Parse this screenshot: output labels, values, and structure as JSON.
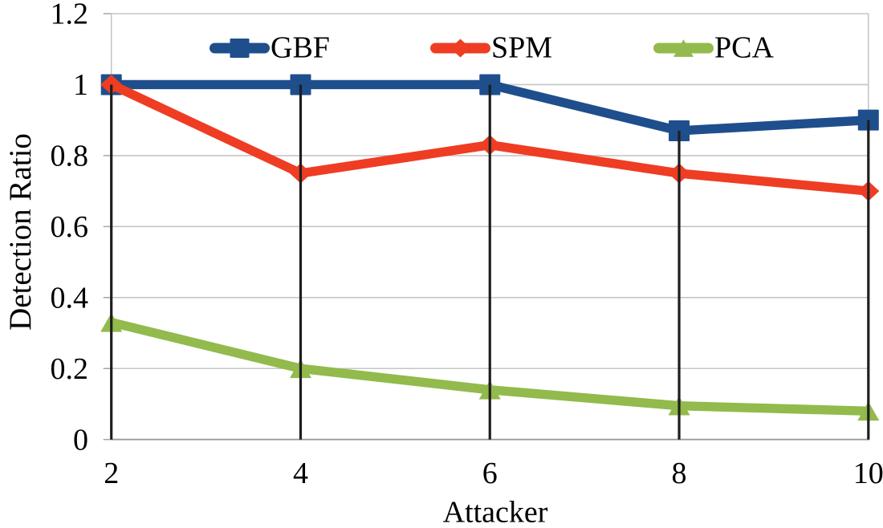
{
  "chart_data": {
    "type": "line",
    "title": "",
    "xlabel": "Attacker",
    "ylabel": "Detection Ratio",
    "x": [
      2,
      4,
      6,
      8,
      10
    ],
    "x_tick_labels": [
      "2",
      "4",
      "6",
      "8",
      "10"
    ],
    "y_ticks": [
      0,
      0.2,
      0.4,
      0.6,
      0.8,
      1,
      1.2
    ],
    "y_tick_labels": [
      "0",
      "0.2",
      "0.4",
      "0.6",
      "0.8",
      "1",
      "1.2"
    ],
    "xlim": [
      2,
      10
    ],
    "ylim": [
      0,
      1.2
    ],
    "grid": "horizontal",
    "legend_position": "top-inside",
    "has_drop_lines": true,
    "series": [
      {
        "name": "GBF",
        "marker": "square",
        "color": "#1F4E8C",
        "values": [
          1.0,
          1.0,
          1.0,
          0.87,
          0.9
        ]
      },
      {
        "name": "SPM",
        "marker": "diamond",
        "color": "#EE3D23",
        "values": [
          1.0,
          0.75,
          0.83,
          0.75,
          0.7
        ]
      },
      {
        "name": "PCA",
        "marker": "triangle",
        "color": "#92BA4C",
        "values": [
          0.33,
          0.2,
          0.14,
          0.095,
          0.08
        ]
      }
    ],
    "colors": {
      "background": "#FFFFFF",
      "gridline": "#C6C6C6",
      "plot_border": "#C6C6C6",
      "axis_line": "#9B9B9B",
      "tick_mark": "#A6A6A6",
      "drop_line": "#1E1E1E",
      "text": "#000000"
    }
  }
}
